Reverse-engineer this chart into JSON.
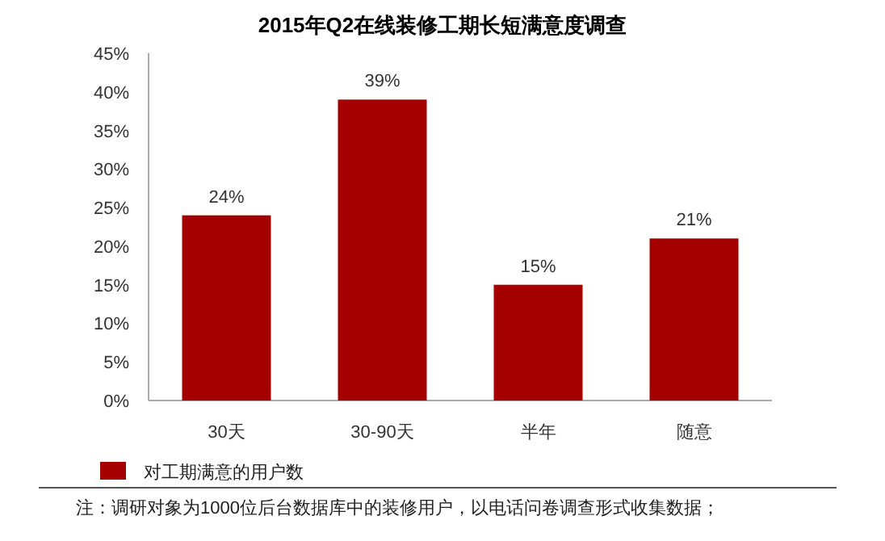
{
  "chart_data": {
    "type": "bar",
    "title": "2015年Q2在线装修工期长短满意度调查",
    "categories": [
      "30天",
      "30-90天",
      "半年",
      "随意"
    ],
    "series": [
      {
        "name": "对工期满意的用户数",
        "color": "#a50000",
        "values": [
          24,
          39,
          15,
          21
        ],
        "value_labels": [
          "24%",
          "39%",
          "15%",
          "21%"
        ]
      }
    ],
    "ylim": [
      0,
      45
    ],
    "yticks": [
      {
        "value": 0,
        "label": "0%"
      },
      {
        "value": 5,
        "label": "5%"
      },
      {
        "value": 10,
        "label": "10%"
      },
      {
        "value": 15,
        "label": "15%"
      },
      {
        "value": 20,
        "label": "20%"
      },
      {
        "value": 25,
        "label": "25%"
      },
      {
        "value": 30,
        "label": "30%"
      },
      {
        "value": 35,
        "label": "35%"
      },
      {
        "value": 40,
        "label": "40%"
      },
      {
        "value": 45,
        "label": "45%"
      }
    ],
    "grid": false,
    "legend": "bottom left",
    "annotations": [
      "注：调研对象为1000位后台数据库中的装修用户，以电话问卷调查形式收集数据；"
    ]
  }
}
